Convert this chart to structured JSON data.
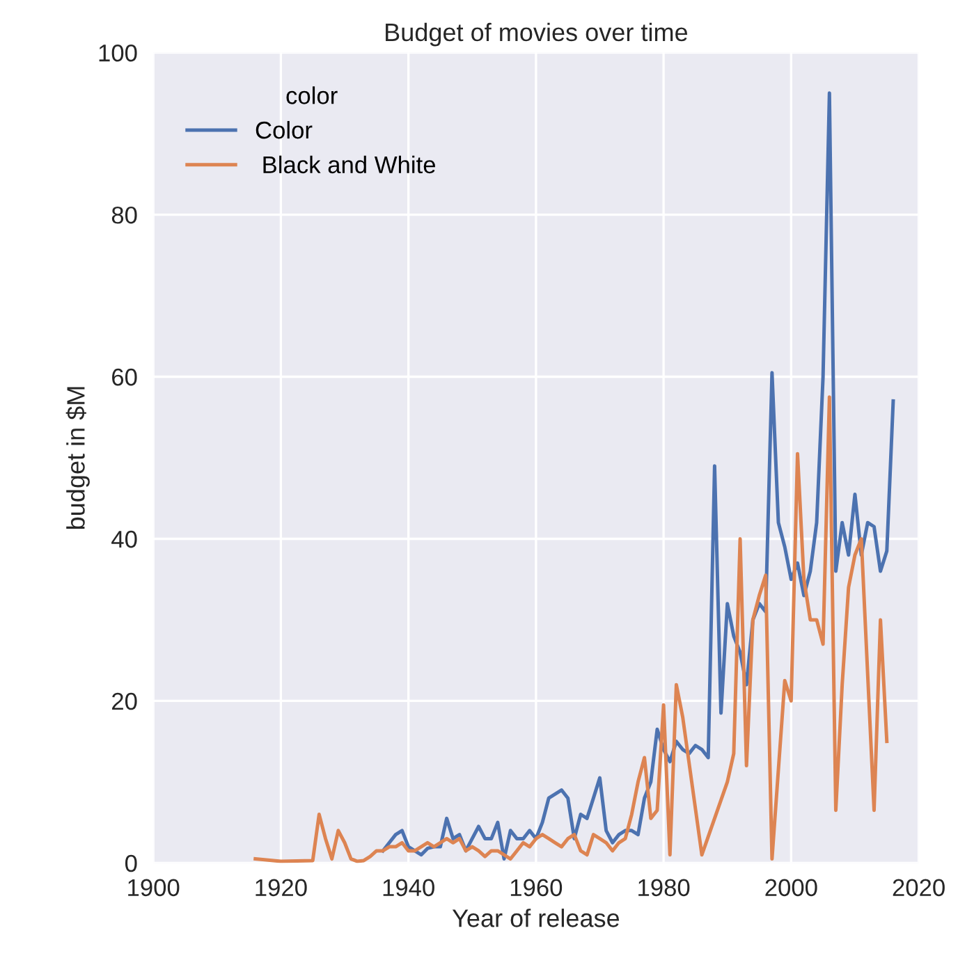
{
  "chart_data": {
    "type": "line",
    "title": "Budget of movies over time",
    "xlabel": "Year of release",
    "ylabel": "budget in $M",
    "legend_title": "color",
    "legend": "top left",
    "grid": true,
    "xlim": [
      1900,
      2020
    ],
    "xticks": [
      1900,
      1920,
      1940,
      1960,
      1980,
      2000,
      2020
    ],
    "ylim": [
      0,
      100
    ],
    "yticks": [
      0,
      20,
      40,
      60,
      80,
      100
    ],
    "series": [
      {
        "name": "Color",
        "color": "#4c72b0",
        "x": [
          1936,
          1937,
          1938,
          1939,
          1940,
          1941,
          1942,
          1943,
          1944,
          1945,
          1946,
          1947,
          1948,
          1949,
          1950,
          1951,
          1952,
          1953,
          1954,
          1955,
          1956,
          1957,
          1958,
          1959,
          1960,
          1961,
          1962,
          1963,
          1964,
          1965,
          1966,
          1967,
          1968,
          1969,
          1970,
          1971,
          1972,
          1973,
          1974,
          1975,
          1976,
          1977,
          1978,
          1979,
          1980,
          1981,
          1982,
          1983,
          1984,
          1985,
          1986,
          1987,
          1988,
          1989,
          1990,
          1991,
          1992,
          1993,
          1994,
          1995,
          1996,
          1997,
          1998,
          1999,
          2000,
          2001,
          2002,
          2003,
          2004,
          2005,
          2006,
          2007,
          2008,
          2009,
          2010,
          2011,
          2012,
          2013,
          2014,
          2015,
          2016
        ],
        "values": [
          1.5,
          2.5,
          3.5,
          4,
          2,
          1.5,
          1,
          1.8,
          2,
          2,
          5.5,
          3,
          3.5,
          1.5,
          3,
          4.5,
          3,
          3,
          5,
          0.5,
          4,
          3,
          3,
          4,
          3,
          5,
          8,
          8.5,
          9,
          8,
          3,
          6,
          5.5,
          8,
          10.5,
          4,
          2.5,
          3.5,
          4,
          4,
          3.5,
          8,
          10,
          16.5,
          14,
          12.5,
          15,
          14,
          13.5,
          14.5,
          14,
          13,
          49,
          18.5,
          32,
          28,
          26,
          22,
          30,
          32,
          31,
          60.5,
          42,
          39,
          35,
          37,
          33,
          36,
          42,
          60,
          95,
          36,
          42,
          38,
          45.5,
          38,
          42,
          41.5,
          36,
          38.5,
          57
        ]
      },
      {
        "name": " Black and White",
        "color": "#dd8452",
        "x": [
          1916,
          1920,
          1925,
          1926,
          1927,
          1928,
          1929,
          1930,
          1931,
          1932,
          1933,
          1934,
          1935,
          1936,
          1937,
          1938,
          1939,
          1940,
          1941,
          1942,
          1943,
          1944,
          1945,
          1946,
          1947,
          1948,
          1949,
          1950,
          1951,
          1952,
          1953,
          1954,
          1955,
          1956,
          1957,
          1958,
          1959,
          1960,
          1961,
          1962,
          1963,
          1964,
          1965,
          1966,
          1967,
          1968,
          1969,
          1970,
          1971,
          1972,
          1973,
          1974,
          1975,
          1976,
          1977,
          1978,
          1979,
          1980,
          1981,
          1982,
          1983,
          1986,
          1990,
          1991,
          1992,
          1993,
          1994,
          1995,
          1996,
          1997,
          1999,
          2000,
          2001,
          2002,
          2003,
          2004,
          2005,
          2006,
          2007,
          2008,
          2009,
          2010,
          2011,
          2013,
          2014,
          2015
        ],
        "values": [
          0.5,
          0.2,
          0.3,
          6,
          3,
          0.5,
          4,
          2.5,
          0.5,
          0.2,
          0.3,
          0.8,
          1.5,
          1.5,
          2,
          2,
          2.5,
          1.5,
          1.5,
          2,
          2.5,
          2,
          2.5,
          3,
          2.5,
          3,
          1.5,
          2,
          1.5,
          0.8,
          1.5,
          1.5,
          1,
          0.5,
          1.5,
          2.5,
          2,
          3,
          3.5,
          3,
          2.5,
          2,
          3,
          3.5,
          1.5,
          1,
          3.5,
          3,
          2.5,
          1.5,
          2.5,
          3,
          6,
          10,
          13,
          5.5,
          6.5,
          19.5,
          1,
          22,
          18,
          1,
          10,
          13.5,
          40,
          12,
          30,
          33,
          35.5,
          0.5,
          22.5,
          20,
          50.5,
          35,
          30,
          30,
          27,
          57.5,
          6.5,
          22,
          34,
          38,
          40,
          6.5,
          30,
          15
        ]
      }
    ]
  }
}
